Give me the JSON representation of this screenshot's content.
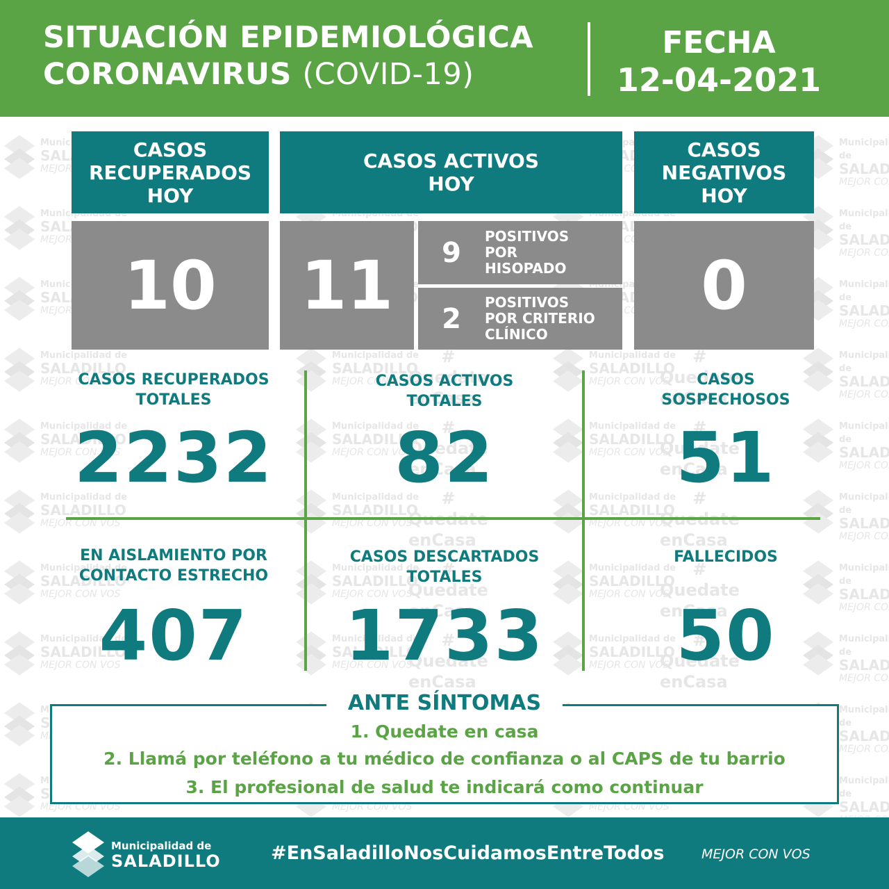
{
  "header": {
    "title_line1": "SITUACIÓN EPIDEMIOLÓGICA",
    "title_line2_bold": "CORONAVIRUS",
    "title_line2_light": "(COVID-19)",
    "date_label": "FECHA",
    "date_value": "12-04-2021"
  },
  "today": {
    "recovered": {
      "label_l1": "CASOS",
      "label_l2": "RECUPERADOS",
      "label_l3": "HOY",
      "value": "10"
    },
    "active": {
      "label_l1": "CASOS ACTIVOS",
      "label_l2": "HOY",
      "value": "11",
      "breakdown": [
        {
          "value": "9",
          "label_l1": "POSITIVOS",
          "label_l2": "POR",
          "label_l3": "HISOPADO"
        },
        {
          "value": "2",
          "label_l1": "POSITIVOS",
          "label_l2": "POR CRITERIO",
          "label_l3": "CLÍNICO"
        }
      ]
    },
    "negative": {
      "label_l1": "CASOS",
      "label_l2": "NEGATIVOS",
      "label_l3": "HOY",
      "value": "0"
    }
  },
  "totals": [
    {
      "label_l1": "CASOS RECUPERADOS",
      "label_l2": "TOTALES",
      "value": "2232"
    },
    {
      "label_l1": "CASOS ACTIVOS",
      "label_l2": "TOTALES",
      "value": "82"
    },
    {
      "label_l1": "CASOS",
      "label_l2": "SOSPECHOSOS",
      "value": "51"
    },
    {
      "label_l1": "EN AISLAMIENTO POR",
      "label_l2": "CONTACTO ESTRECHO",
      "value": "407"
    },
    {
      "label_l1": "CASOS DESCARTADOS",
      "label_l2": "TOTALES",
      "value": "1733"
    },
    {
      "label_l1": "FALLECIDOS",
      "label_l2": "",
      "value": "50"
    }
  ],
  "ante_sintomas": {
    "title": "ANTE SÍNTOMAS",
    "steps": [
      "1. Quedate en casa",
      "2. Llamá por teléfono a tu médico de confianza o al CAPS de tu barrio",
      "3. El profesional de salud te indicará como continuar"
    ]
  },
  "footer": {
    "muni_line1": "Municipalidad de",
    "muni_line2": "SALADILLO",
    "hashtag": "#EnSaladilloNosCuidamosEntreTodos",
    "slogan": "MEJOR CON VOS"
  },
  "watermark": {
    "muni": "Municipalidad de",
    "name": "SALADILLO",
    "slogan": "MEJOR CON VOS",
    "hash": "#",
    "quedate": "Quedate",
    "encasa": "enCasa"
  },
  "colors": {
    "green": "#5aa446",
    "teal": "#0f7b7f",
    "gray": "#8b8b8b"
  }
}
